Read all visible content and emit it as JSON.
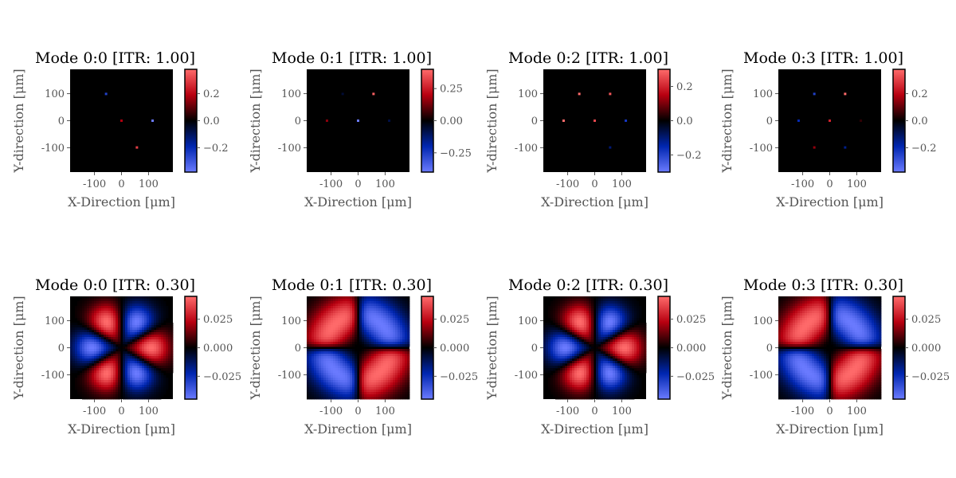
{
  "figure": {
    "background": "#ffffff",
    "colormap": [
      "#6b7bff",
      "#0026b0",
      "#000000",
      "#b80010",
      "#ff6b6b"
    ]
  },
  "chart_data": [
    {
      "type": "heatmap",
      "row": 0,
      "col": 0,
      "title": "Mode 0:0  [ITR: 1.00]",
      "xlabel": "X-Direction [μm]",
      "ylabel": "Y-direction [μm]",
      "xlim": [
        -190,
        190
      ],
      "ylim": [
        -190,
        190
      ],
      "xticks": [
        -100,
        0,
        100
      ],
      "yticks": [
        -100,
        0,
        100
      ],
      "clim": [
        -0.38,
        0.38
      ],
      "colorbar_ticks": [
        0.2,
        0.0,
        -0.2
      ],
      "colorbar_tick_labels": [
        "0.2",
        "0.0",
        "−0.2"
      ],
      "field": "points",
      "points": [
        {
          "x": -57,
          "y": 99,
          "value": -0.25
        },
        {
          "x": 0,
          "y": 0,
          "value": 0.18
        },
        {
          "x": 115,
          "y": 0,
          "value": -0.38
        },
        {
          "x": 57,
          "y": -99,
          "value": 0.3
        }
      ]
    },
    {
      "type": "heatmap",
      "row": 0,
      "col": 1,
      "title": "Mode 0:1  [ITR: 1.00]",
      "xlabel": "X-Direction [μm]",
      "ylabel": "Y-direction [μm]",
      "xlim": [
        -190,
        190
      ],
      "ylim": [
        -190,
        190
      ],
      "xticks": [
        -100,
        0,
        100
      ],
      "yticks": [
        -100,
        0,
        100
      ],
      "clim": [
        -0.4,
        0.4
      ],
      "colorbar_ticks": [
        0.25,
        0.0,
        -0.25
      ],
      "colorbar_tick_labels": [
        "0.25",
        "0.00",
        "−0.25"
      ],
      "field": "points",
      "points": [
        {
          "x": 57,
          "y": 99,
          "value": 0.38
        },
        {
          "x": -115,
          "y": 0,
          "value": 0.15
        },
        {
          "x": 0,
          "y": 0,
          "value": -0.4
        },
        {
          "x": 115,
          "y": 0,
          "value": -0.08
        },
        {
          "x": -57,
          "y": 99,
          "value": -0.06
        }
      ]
    },
    {
      "type": "heatmap",
      "row": 0,
      "col": 2,
      "title": "Mode 0:2  [ITR: 1.00]",
      "xlabel": "X-Direction [μm]",
      "ylabel": "Y-direction [μm]",
      "xlim": [
        -190,
        190
      ],
      "ylim": [
        -190,
        190
      ],
      "xticks": [
        -100,
        0,
        100
      ],
      "yticks": [
        -100,
        0,
        100
      ],
      "clim": [
        -0.3,
        0.3
      ],
      "colorbar_ticks": [
        0.2,
        0.0,
        -0.2
      ],
      "colorbar_tick_labels": [
        "0.2",
        "0.0",
        "−0.2"
      ],
      "field": "points",
      "points": [
        {
          "x": -57,
          "y": 99,
          "value": 0.3
        },
        {
          "x": 57,
          "y": 99,
          "value": 0.27
        },
        {
          "x": -115,
          "y": 0,
          "value": 0.3
        },
        {
          "x": 0,
          "y": 0,
          "value": 0.25
        },
        {
          "x": 115,
          "y": 0,
          "value": -0.18
        },
        {
          "x": 57,
          "y": -99,
          "value": -0.1
        }
      ]
    },
    {
      "type": "heatmap",
      "row": 0,
      "col": 3,
      "title": "Mode 0:3  [ITR: 1.00]",
      "xlabel": "X-Direction [μm]",
      "ylabel": "Y-direction [μm]",
      "xlim": [
        -190,
        190
      ],
      "ylim": [
        -190,
        190
      ],
      "xticks": [
        -100,
        0,
        100
      ],
      "yticks": [
        -100,
        0,
        100
      ],
      "clim": [
        -0.38,
        0.38
      ],
      "colorbar_ticks": [
        0.2,
        0.0,
        -0.2
      ],
      "colorbar_tick_labels": [
        "0.2",
        "0.0",
        "−0.2"
      ],
      "field": "points",
      "points": [
        {
          "x": -57,
          "y": 99,
          "value": -0.25
        },
        {
          "x": 57,
          "y": 99,
          "value": 0.38
        },
        {
          "x": -115,
          "y": 0,
          "value": -0.2
        },
        {
          "x": 0,
          "y": 0,
          "value": 0.25
        },
        {
          "x": -57,
          "y": -99,
          "value": 0.15
        },
        {
          "x": 57,
          "y": -99,
          "value": -0.15
        },
        {
          "x": 115,
          "y": 0,
          "value": 0.05
        }
      ]
    },
    {
      "type": "heatmap",
      "row": 1,
      "col": 0,
      "title": "Mode 0:0  [ITR: 0.30]",
      "xlabel": "X-Direction [μm]",
      "ylabel": "Y-direction [μm]",
      "xlim": [
        -190,
        190
      ],
      "ylim": [
        -190,
        190
      ],
      "xticks": [
        -100,
        0,
        100
      ],
      "yticks": [
        -100,
        0,
        100
      ],
      "clim": [
        -0.045,
        0.045
      ],
      "colorbar_ticks": [
        0.025,
        0.0,
        -0.025
      ],
      "colorbar_tick_labels": [
        "0.025",
        "0.000",
        "−0.025"
      ],
      "field": "angular",
      "lobes": 6,
      "phase": 0,
      "peak": 0.045
    },
    {
      "type": "heatmap",
      "row": 1,
      "col": 1,
      "title": "Mode 0:1  [ITR: 0.30]",
      "xlabel": "X-Direction [μm]",
      "ylabel": "Y-direction [μm]",
      "xlim": [
        -190,
        190
      ],
      "ylim": [
        -190,
        190
      ],
      "xticks": [
        -100,
        0,
        100
      ],
      "yticks": [
        -100,
        0,
        100
      ],
      "clim": [
        -0.045,
        0.045
      ],
      "colorbar_ticks": [
        0.025,
        0.0,
        -0.025
      ],
      "colorbar_tick_labels": [
        "0.025",
        "0.000",
        "−0.025"
      ],
      "field": "quadrant",
      "sign": 1,
      "peak": 0.045
    },
    {
      "type": "heatmap",
      "row": 1,
      "col": 2,
      "title": "Mode 0:2  [ITR: 0.30]",
      "xlabel": "X-Direction [μm]",
      "ylabel": "Y-direction [μm]",
      "xlim": [
        -190,
        190
      ],
      "ylim": [
        -190,
        190
      ],
      "xticks": [
        -100,
        0,
        100
      ],
      "yticks": [
        -100,
        0,
        100
      ],
      "clim": [
        -0.045,
        0.045
      ],
      "colorbar_ticks": [
        0.025,
        0.0,
        -0.025
      ],
      "colorbar_tick_labels": [
        "0.025",
        "0.000",
        "−0.025"
      ],
      "field": "angular",
      "lobes": 6,
      "phase": 0,
      "peak": 0.045
    },
    {
      "type": "heatmap",
      "row": 1,
      "col": 3,
      "title": "Mode 0:3  [ITR: 0.30]",
      "xlabel": "X-Direction [μm]",
      "ylabel": "Y-direction [μm]",
      "xlim": [
        -190,
        190
      ],
      "ylim": [
        -190,
        190
      ],
      "xticks": [
        -100,
        0,
        100
      ],
      "yticks": [
        -100,
        0,
        100
      ],
      "clim": [
        -0.045,
        0.045
      ],
      "colorbar_ticks": [
        0.025,
        0.0,
        -0.025
      ],
      "colorbar_tick_labels": [
        "0.025",
        "0.000",
        "−0.025"
      ],
      "field": "quadrant",
      "sign": 1,
      "peak": 0.045
    }
  ]
}
